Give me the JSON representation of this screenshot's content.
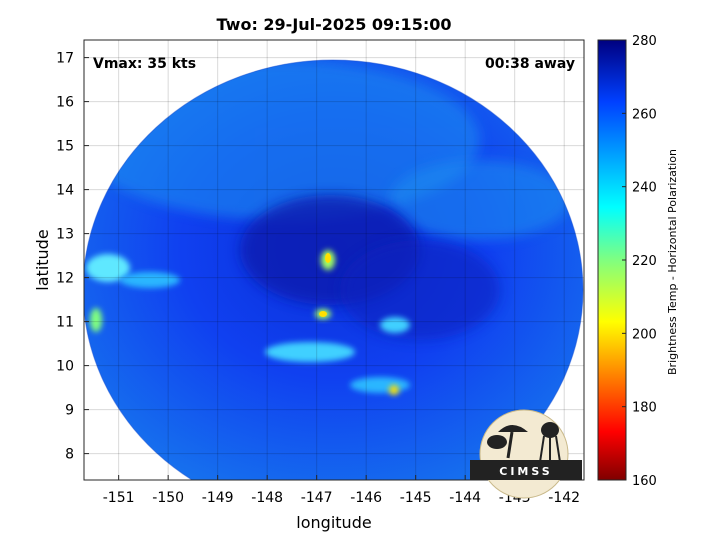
{
  "title": "Two: 29-Jul-2025 09:15:00",
  "vmax_label": "Vmax: 35 kts",
  "time_away": "00:38 away",
  "xlabel": "longitude",
  "ylabel": "latitude",
  "colorbar_label": "Brightness Temp - Horizontal Polarization",
  "logo_text": "CIMSS",
  "x_ticks": [
    "-151",
    "-150",
    "-149",
    "-148",
    "-147",
    "-146",
    "-145",
    "-144",
    "-143",
    "-142"
  ],
  "y_ticks": [
    "8",
    "9",
    "10",
    "11",
    "12",
    "13",
    "14",
    "15",
    "16",
    "17"
  ],
  "colorbar_ticks": [
    "280",
    "260",
    "240",
    "220",
    "200",
    "180",
    "160"
  ],
  "map_data": {
    "type": "swath_image",
    "xlim": [
      -151.7,
      -141.6
    ],
    "ylim": [
      7.4,
      17.4
    ],
    "clim": [
      160,
      280
    ],
    "grid": true,
    "colormap": "jet",
    "swath_center": [
      -146.8,
      11.3
    ],
    "storm_center": [
      -146.9,
      12.5
    ],
    "features": [
      {
        "name": "eye",
        "lon": -146.9,
        "lat": 12.5,
        "tb": 205
      },
      {
        "name": "warm-spot",
        "lon": -146.9,
        "lat": 11.2,
        "tb": 215
      },
      {
        "name": "warm-spot",
        "lon": -145.6,
        "lat": 9.4,
        "tb": 225
      },
      {
        "name": "rainband-west",
        "lon": -151.2,
        "lat": 12.0,
        "tb": 228
      },
      {
        "name": "rainband-south",
        "lon": -147.0,
        "lat": 10.2,
        "tb": 232
      }
    ]
  }
}
